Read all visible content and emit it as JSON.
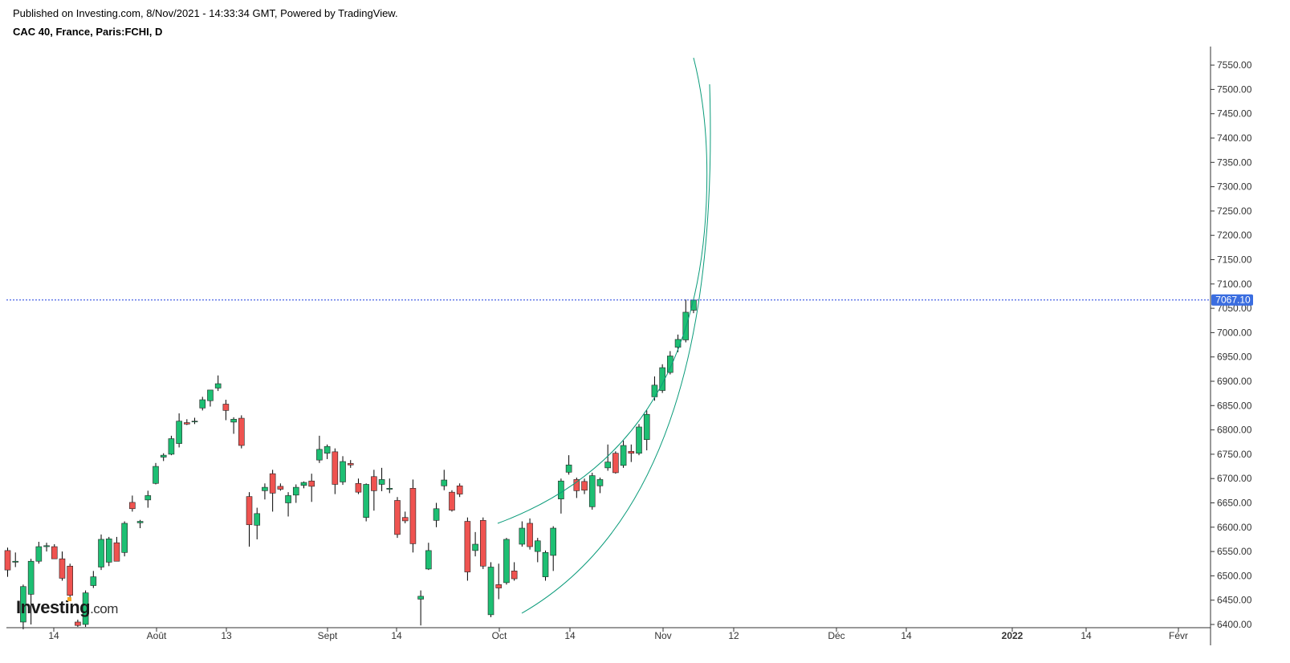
{
  "header": {
    "published": "Published on Investing.com, 8/Nov/2021 - 14:33:34 GMT, Powered by TradingView.",
    "title": "CAC 40, France, Paris:FCHI, D"
  },
  "logo": {
    "main": "Investing",
    "suffix": ".com"
  },
  "colors": {
    "up": "#1dbf73",
    "down": "#ef5350",
    "wick": "#000000",
    "arc": "#0a9b7a",
    "price_line": "#1e3fe0",
    "price_tag": "#3a6de0"
  },
  "chart_data": {
    "type": "candlestick",
    "title": "CAC 40, France, Paris:FCHI, D",
    "ylim": [
      6395,
      7580
    ],
    "y_ticks": [
      6400,
      6450,
      6500,
      6550,
      6600,
      6650,
      6700,
      6750,
      6800,
      6850,
      6900,
      6950,
      7000,
      7050,
      7100,
      7150,
      7200,
      7250,
      7300,
      7350,
      7400,
      7450,
      7500,
      7550
    ],
    "x_ticks": [
      {
        "label": "14",
        "bold": false
      },
      {
        "label": "Août",
        "bold": false
      },
      {
        "label": "13",
        "bold": false
      },
      {
        "label": "Sept",
        "bold": false
      },
      {
        "label": "14",
        "bold": false
      },
      {
        "label": "Oct",
        "bold": false
      },
      {
        "label": "14",
        "bold": false
      },
      {
        "label": "Nov",
        "bold": false
      },
      {
        "label": "12",
        "bold": false
      },
      {
        "label": "Déc",
        "bold": false
      },
      {
        "label": "14",
        "bold": false
      },
      {
        "label": "2022",
        "bold": true
      },
      {
        "label": "14",
        "bold": false
      },
      {
        "label": "Févr",
        "bold": false
      }
    ],
    "last_price": 7067.1,
    "last_price_label": "7067.10",
    "candles": [
      [
        6552,
        6558,
        6498,
        6512
      ],
      [
        6528,
        6548,
        6518,
        6530
      ],
      [
        6405,
        6482,
        6390,
        6478
      ],
      [
        6462,
        6535,
        6400,
        6530
      ],
      [
        6530,
        6570,
        6525,
        6560
      ],
      [
        6560,
        6568,
        6550,
        6562
      ],
      [
        6560,
        6565,
        6535,
        6535
      ],
      [
        6535,
        6550,
        6490,
        6495
      ],
      [
        6520,
        6525,
        6452,
        6460
      ],
      [
        6405,
        6410,
        6395,
        6398
      ],
      [
        6400,
        6470,
        6395,
        6465
      ],
      [
        6480,
        6510,
        6475,
        6498
      ],
      [
        6518,
        6585,
        6512,
        6575
      ],
      [
        6528,
        6580,
        6520,
        6576
      ],
      [
        6568,
        6580,
        6530,
        6530
      ],
      [
        6548,
        6612,
        6540,
        6608
      ],
      [
        6651,
        6665,
        6632,
        6638
      ],
      [
        6609,
        6615,
        6598,
        6612
      ],
      [
        6656,
        6675,
        6640,
        6665
      ],
      [
        6690,
        6732,
        6688,
        6725
      ],
      [
        6744,
        6752,
        6736,
        6748
      ],
      [
        6750,
        6788,
        6748,
        6782
      ],
      [
        6772,
        6834,
        6764,
        6818
      ],
      [
        6815,
        6822,
        6810,
        6812
      ],
      [
        6817,
        6825,
        6812,
        6818
      ],
      [
        6845,
        6868,
        6840,
        6862
      ],
      [
        6860,
        6878,
        6848,
        6882
      ],
      [
        6886,
        6912,
        6880,
        6895
      ],
      [
        6853,
        6862,
        6820,
        6840
      ],
      [
        6816,
        6826,
        6792,
        6822
      ],
      [
        6824,
        6830,
        6762,
        6768
      ],
      [
        6663,
        6672,
        6560,
        6605
      ],
      [
        6604,
        6640,
        6575,
        6628
      ],
      [
        6675,
        6690,
        6657,
        6682
      ],
      [
        6710,
        6718,
        6632,
        6670
      ],
      [
        6684,
        6690,
        6675,
        6678
      ],
      [
        6650,
        6672,
        6622,
        6665
      ],
      [
        6666,
        6688,
        6650,
        6682
      ],
      [
        6686,
        6694,
        6680,
        6692
      ],
      [
        6695,
        6710,
        6652,
        6684
      ],
      [
        6738,
        6788,
        6732,
        6760
      ],
      [
        6752,
        6770,
        6740,
        6766
      ],
      [
        6755,
        6762,
        6668,
        6688
      ],
      [
        6693,
        6746,
        6687,
        6735
      ],
      [
        6731,
        6738,
        6722,
        6728
      ],
      [
        6690,
        6700,
        6668,
        6672
      ],
      [
        6620,
        6690,
        6612,
        6688
      ],
      [
        6704,
        6718,
        6634,
        6675
      ],
      [
        6688,
        6722,
        6674,
        6698
      ],
      [
        6678,
        6700,
        6670,
        6680
      ],
      [
        6655,
        6662,
        6578,
        6585
      ],
      [
        6620,
        6632,
        6608,
        6613
      ],
      [
        6680,
        6698,
        6548,
        6566
      ],
      [
        6452,
        6470,
        6398,
        6458
      ],
      [
        6514,
        6568,
        6512,
        6552
      ],
      [
        6614,
        6650,
        6600,
        6638
      ],
      [
        6685,
        6718,
        6676,
        6697
      ],
      [
        6672,
        6676,
        6632,
        6635
      ],
      [
        6685,
        6690,
        6662,
        6668
      ],
      [
        6612,
        6620,
        6490,
        6508
      ],
      [
        6552,
        6590,
        6540,
        6565
      ],
      [
        6614,
        6620,
        6514,
        6520
      ],
      [
        6420,
        6528,
        6415,
        6518
      ],
      [
        6482,
        6525,
        6452,
        6475
      ],
      [
        6486,
        6578,
        6482,
        6575
      ],
      [
        6510,
        6528,
        6490,
        6494
      ],
      [
        6565,
        6612,
        6560,
        6598
      ],
      [
        6608,
        6618,
        6554,
        6560
      ],
      [
        6550,
        6578,
        6528,
        6572
      ],
      [
        6498,
        6552,
        6490,
        6548
      ],
      [
        6542,
        6602,
        6510,
        6598
      ],
      [
        6658,
        6700,
        6628,
        6695
      ],
      [
        6713,
        6748,
        6708,
        6728
      ],
      [
        6698,
        6702,
        6660,
        6675
      ],
      [
        6694,
        6700,
        6668,
        6676
      ],
      [
        6642,
        6712,
        6636,
        6706
      ],
      [
        6685,
        6702,
        6670,
        6698
      ],
      [
        6722,
        6770,
        6716,
        6734
      ],
      [
        6752,
        6756,
        6710,
        6712
      ],
      [
        6727,
        6778,
        6722,
        6768
      ],
      [
        6756,
        6770,
        6734,
        6752
      ],
      [
        6752,
        6812,
        6748,
        6806
      ],
      [
        6780,
        6840,
        6758,
        6832
      ],
      [
        6868,
        6910,
        6860,
        6892
      ],
      [
        6881,
        6935,
        6876,
        6928
      ],
      [
        6918,
        6962,
        6914,
        6952
      ],
      [
        6970,
        6996,
        6960,
        6986
      ],
      [
        6985,
        7068,
        6980,
        7042
      ],
      [
        7046,
        7068,
        7040,
        7067
      ]
    ],
    "annotations": [
      {
        "type": "arc",
        "label": ""
      },
      {
        "type": "arc",
        "label": ""
      }
    ]
  }
}
